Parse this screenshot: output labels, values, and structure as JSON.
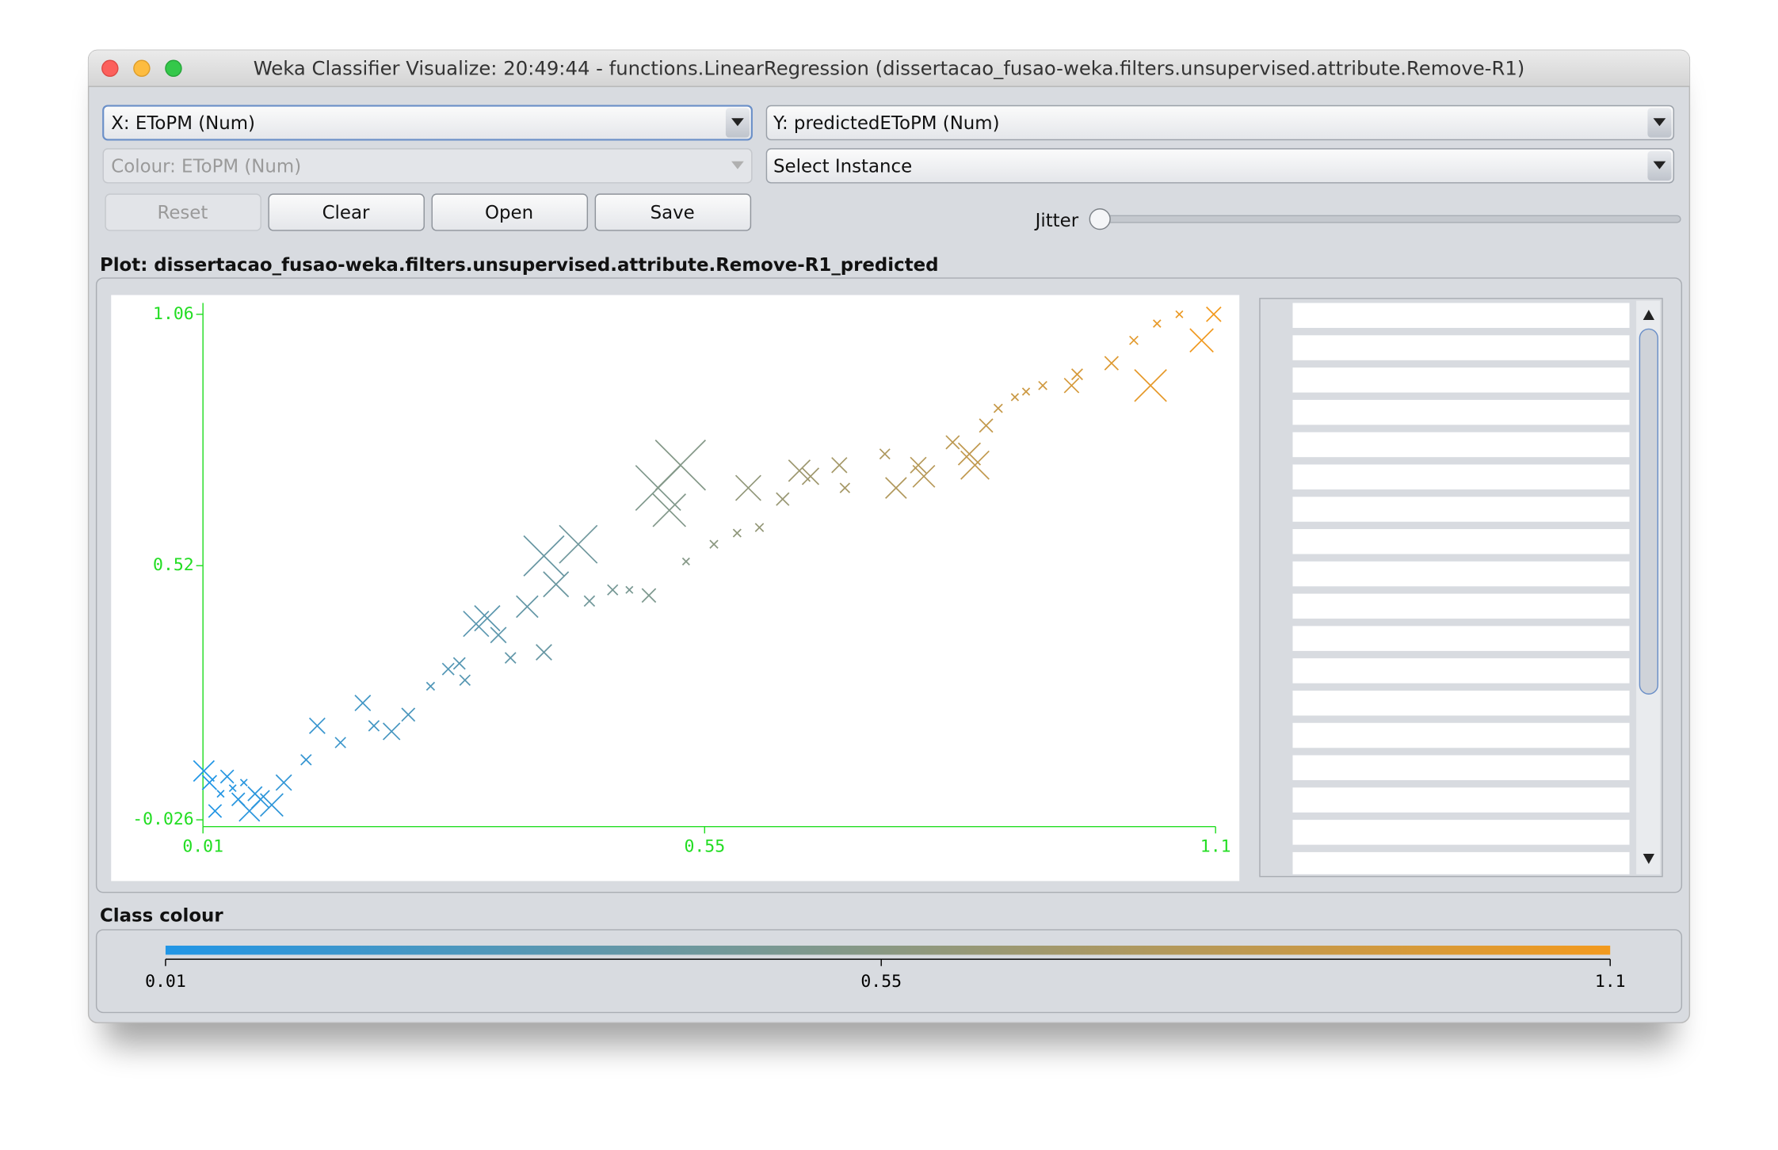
{
  "window": {
    "title": "Weka Classifier Visualize: 20:49:44 - functions.LinearRegression (dissertacao_fusao-weka.filters.unsupervised.attribute.Remove-R1)"
  },
  "controls": {
    "x_axis": "X: EToPM (Num)",
    "y_axis": "Y: predictedEToPM (Num)",
    "colour": "Colour: EToPM (Num)",
    "instance": "Select Instance",
    "buttons": [
      "Reset",
      "Clear",
      "Open",
      "Save"
    ],
    "jitter": "Jitter"
  },
  "plot_label": "Plot: dissertacao_fusao-weka.filters.unsupervised.attribute.Remove-R1_predicted",
  "chart_data": {
    "type": "scatter",
    "xlim": [
      0.01,
      1.1
    ],
    "ylim": [
      -0.026,
      1.06
    ],
    "xticks": [
      0.01,
      0.55,
      1.1
    ],
    "yticks": [
      -0.026,
      0.52,
      1.06
    ],
    "color_low": "#2196e6",
    "color_high": "#f39a1e",
    "axis_color": "#22dd22",
    "x": [
      0.017,
      0.029,
      0.042,
      0.048,
      0.023,
      0.054,
      0.066,
      0.036,
      0.072,
      0.084,
      0.011,
      0.06,
      0.097,
      0.121,
      0.133,
      0.158,
      0.182,
      0.194,
      0.213,
      0.231,
      0.255,
      0.274,
      0.286,
      0.292,
      0.304,
      0.316,
      0.328,
      0.341,
      0.359,
      0.377,
      0.377,
      0.39,
      0.414,
      0.426,
      0.451,
      0.469,
      0.49,
      0.5,
      0.512,
      0.524,
      0.53,
      0.56,
      0.585,
      0.597,
      0.609,
      0.634,
      0.652,
      0.664,
      0.695,
      0.701,
      0.744,
      0.756,
      0.78,
      0.786,
      0.817,
      0.835,
      0.841,
      0.853,
      0.866,
      0.884,
      0.896,
      0.914,
      0.945,
      0.951,
      0.988,
      1.012,
      1.03,
      1.037,
      1.061,
      1.085,
      1.098
    ],
    "values": [
      0.054,
      0.03,
      0.042,
      0.018,
      -0.007,
      0.054,
      0.03,
      0.067,
      0.018,
      0.006,
      0.079,
      -0.007,
      0.054,
      0.103,
      0.176,
      0.14,
      0.225,
      0.176,
      0.164,
      0.2,
      0.261,
      0.298,
      0.31,
      0.274,
      0.395,
      0.407,
      0.371,
      0.322,
      0.432,
      0.334,
      0.541,
      0.48,
      0.566,
      0.444,
      0.468,
      0.468,
      0.456,
      0.687,
      0.639,
      0.736,
      0.529,
      0.566,
      0.59,
      0.687,
      0.602,
      0.663,
      0.724,
      0.712,
      0.736,
      0.687,
      0.76,
      0.687,
      0.736,
      0.712,
      0.785,
      0.76,
      0.736,
      0.821,
      0.858,
      0.882,
      0.894,
      0.907,
      0.907,
      0.931,
      0.955,
      1.004,
      0.907,
      1.04,
      1.06,
      1.004,
      1.06
    ]
  },
  "class_colour": {
    "label": "Class colour",
    "ticks": [
      0.01,
      0.55,
      1.1
    ]
  }
}
